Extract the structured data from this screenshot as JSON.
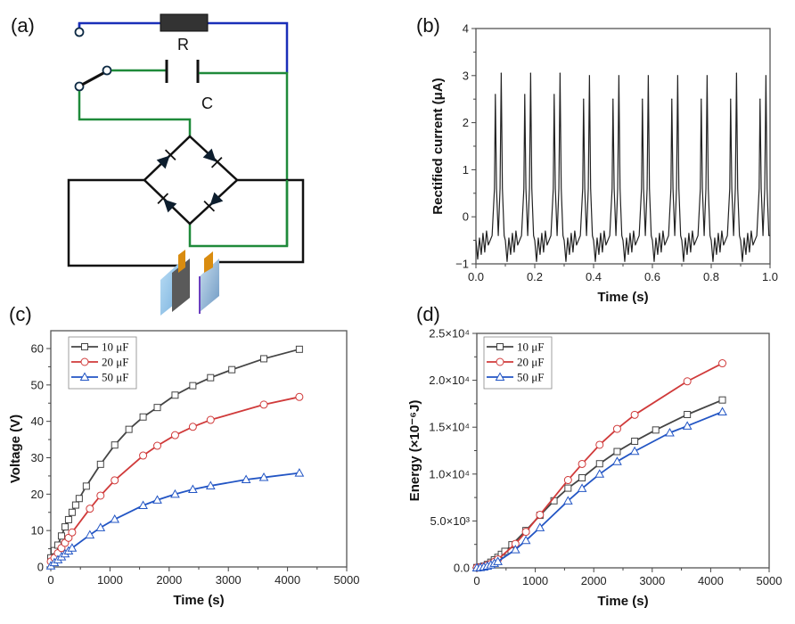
{
  "panels": {
    "a": "(a)",
    "b": "(b)",
    "c": "(c)",
    "d": "(d)"
  },
  "circuit": {
    "resistor_label": "R",
    "capacitor_label": "C",
    "colors": {
      "resistor_wire": "#1a2fb8",
      "capacitor_wire": "#1f8a3a",
      "bridge_wire": "#111111",
      "electrode_tab": "#d98c10"
    }
  },
  "chart_data": [
    {
      "id": "b",
      "type": "line",
      "title": "",
      "xlabel": "Time (s)",
      "ylabel": "Rectified current (μA)",
      "xlim": [
        0,
        1.0
      ],
      "ylim": [
        -1,
        4
      ],
      "xticks": [
        "0.0",
        "0.2",
        "0.4",
        "0.6",
        "0.8",
        "1.0"
      ],
      "yticks": [
        "−1",
        "0",
        "1",
        "2",
        "3",
        "4"
      ],
      "color": "#222222",
      "period_s": 0.1,
      "cycles": 10,
      "peak_pairs": [
        [
          2.6,
          3.05
        ],
        [
          2.6,
          3.05
        ],
        [
          2.6,
          3.05
        ],
        [
          2.5,
          3.0
        ],
        [
          2.5,
          3.0
        ],
        [
          2.5,
          3.0
        ],
        [
          2.5,
          3.0
        ],
        [
          2.5,
          3.0
        ],
        [
          2.5,
          3.05
        ],
        [
          2.5,
          3.0
        ]
      ],
      "baseline_range": [
        -0.95,
        -0.3
      ]
    },
    {
      "id": "c",
      "type": "line",
      "title": "",
      "xlabel": "Time (s)",
      "ylabel": "Voltage (V)",
      "xlim": [
        0,
        5000
      ],
      "ylim": [
        0,
        65
      ],
      "xticks": [
        "0",
        "1000",
        "2000",
        "3000",
        "4000",
        "5000"
      ],
      "yticks": [
        "0",
        "10",
        "20",
        "30",
        "40",
        "50",
        "60"
      ],
      "legend": "top-left",
      "series": [
        {
          "name": "10 μF",
          "color": "#444444",
          "marker": "square",
          "x": [
            0,
            60,
            120,
            180,
            240,
            300,
            360,
            420,
            480,
            600,
            840,
            1080,
            1320,
            1560,
            1800,
            2100,
            2400,
            2700,
            3060,
            3600,
            4200
          ],
          "y": [
            2.5,
            4.5,
            6.0,
            8.5,
            11.0,
            13.0,
            15.0,
            17.0,
            18.8,
            22.2,
            28.2,
            33.5,
            37.8,
            41.2,
            43.8,
            47.2,
            49.8,
            52.0,
            54.2,
            57.2,
            59.8
          ]
        },
        {
          "name": "20 μF",
          "color": "#d03a3a",
          "marker": "circle",
          "x": [
            0,
            60,
            120,
            180,
            240,
            300,
            360,
            660,
            840,
            1080,
            1560,
            1800,
            2100,
            2400,
            2700,
            3600,
            4200
          ],
          "y": [
            1.5,
            2.5,
            3.8,
            5.2,
            6.6,
            8.0,
            9.5,
            16.0,
            19.6,
            23.8,
            30.6,
            33.3,
            36.2,
            38.5,
            40.4,
            44.6,
            46.7
          ]
        },
        {
          "name": "50 μF",
          "color": "#2255c4",
          "marker": "triangle",
          "x": [
            0,
            60,
            120,
            180,
            240,
            300,
            360,
            660,
            840,
            1080,
            1560,
            1800,
            2100,
            2400,
            2700,
            3300,
            3600,
            4200
          ],
          "y": [
            0.3,
            1.2,
            2.0,
            2.8,
            3.6,
            4.4,
            5.2,
            8.8,
            10.8,
            13.1,
            16.9,
            18.4,
            20.0,
            21.3,
            22.3,
            24.0,
            24.6,
            25.8
          ]
        }
      ]
    },
    {
      "id": "d",
      "type": "line",
      "title": "",
      "xlabel": "Time (s)",
      "ylabel": "Energy (×10⁻⁶J)",
      "xlim": [
        0,
        5000
      ],
      "ylim": [
        0,
        25000
      ],
      "xticks": [
        "0",
        "1000",
        "2000",
        "3000",
        "4000",
        "5000"
      ],
      "yticks": [
        "0.0",
        "5.0×10³",
        "1.0×10⁴",
        "1.5×10⁴",
        "2.0×10⁴",
        "2.5×10⁴"
      ],
      "legend": "top-left",
      "series": [
        {
          "name": "10 μF",
          "color": "#444444",
          "marker": "square",
          "x": [
            0,
            60,
            120,
            180,
            240,
            300,
            360,
            420,
            480,
            600,
            840,
            1080,
            1320,
            1560,
            1800,
            2100,
            2400,
            2700,
            3060,
            3600,
            4200
          ],
          "y": [
            30,
            100,
            180,
            360,
            600,
            850,
            1120,
            1440,
            1760,
            2460,
            3980,
            5600,
            7150,
            8500,
            9600,
            11100,
            12400,
            13500,
            14700,
            16350,
            17900
          ]
        },
        {
          "name": "20 μF",
          "color": "#d03a3a",
          "marker": "circle",
          "x": [
            0,
            60,
            120,
            180,
            240,
            300,
            360,
            660,
            840,
            1080,
            1560,
            1800,
            2100,
            2400,
            2700,
            3600,
            4200
          ],
          "y": [
            20,
            60,
            140,
            270,
            430,
            640,
            900,
            2560,
            3840,
            5660,
            9360,
            11080,
            13120,
            14820,
            16320,
            19890,
            21810
          ]
        },
        {
          "name": "50 μF",
          "color": "#2255c4",
          "marker": "triangle",
          "x": [
            0,
            60,
            120,
            180,
            240,
            300,
            360,
            660,
            840,
            1080,
            1560,
            1800,
            2100,
            2400,
            2700,
            3300,
            3600,
            4200
          ],
          "y": [
            2,
            36,
            100,
            196,
            324,
            484,
            676,
            1940,
            2920,
            4290,
            7140,
            8470,
            10000,
            11340,
            12430,
            14400,
            15130,
            16640
          ]
        }
      ]
    }
  ]
}
